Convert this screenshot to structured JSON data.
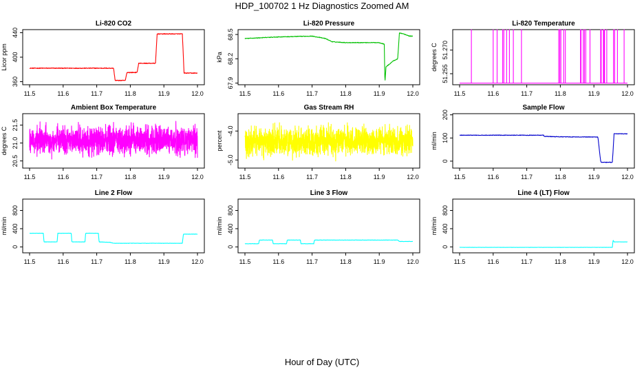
{
  "page": {
    "title": "HDP_100702  1 Hz Diagnostics Zoomed AM",
    "bottom_label": "Hour of Day (UTC)"
  },
  "chart_data": [
    {
      "type": "line",
      "title": "Li-820 CO2",
      "ylabel": "Licor ppm",
      "color": "#ff0000",
      "xlim": [
        11.5,
        12.0
      ],
      "xticks": [
        "11.5",
        "11.6",
        "11.7",
        "11.8",
        "11.9",
        "12.0"
      ],
      "ylim": [
        355,
        445
      ],
      "yticks": [
        "360",
        "400",
        "440"
      ],
      "noise": 0.6,
      "series": [
        {
          "x": [
            11.5,
            11.75,
            11.755,
            11.785,
            11.79,
            11.82,
            11.825,
            11.875,
            11.88,
            11.955,
            11.96,
            12.0
          ],
          "y": [
            382,
            382,
            362,
            362,
            375,
            375,
            390,
            390,
            438,
            438,
            374,
            374
          ]
        }
      ]
    },
    {
      "type": "line",
      "title": "Li-820 Pressure",
      "ylabel": "kPa",
      "color": "#00c000",
      "xlim": [
        11.5,
        12.0
      ],
      "xticks": [
        "11.5",
        "11.6",
        "11.7",
        "11.8",
        "11.9",
        "12.0"
      ],
      "ylim": [
        67.88,
        68.56
      ],
      "yticks": [
        "67.9",
        "68.2",
        "68.5"
      ],
      "noise": 0.004,
      "series": [
        {
          "x": [
            11.5,
            11.55,
            11.6,
            11.7,
            11.74,
            11.76,
            11.8,
            11.9,
            11.915,
            11.917,
            11.92,
            11.935,
            11.94,
            11.955,
            11.96,
            11.97,
            11.99,
            12.0
          ],
          "y": [
            68.45,
            68.46,
            68.47,
            68.48,
            68.45,
            68.41,
            68.4,
            68.4,
            68.38,
            67.9,
            68.1,
            68.15,
            68.17,
            68.2,
            68.52,
            68.51,
            68.48,
            68.48
          ]
        }
      ]
    },
    {
      "type": "line",
      "title": "Li-820 Temperature",
      "ylabel": "degrees C",
      "color": "#ff00ff",
      "xlim": [
        11.5,
        12.0
      ],
      "xticks": [
        "11.5",
        "11.6",
        "11.7",
        "11.8",
        "11.9",
        "12.0"
      ],
      "ylim": [
        51.248,
        51.283
      ],
      "yticks": [
        "51.255",
        "51.270"
      ],
      "baseline": 51.249,
      "spike_top": 51.283,
      "spikes": [
        11.535,
        11.6,
        11.612,
        11.628,
        11.632,
        11.64,
        11.648,
        11.66,
        11.684,
        11.795,
        11.798,
        11.802,
        11.81,
        11.815,
        11.86,
        11.862,
        11.868,
        11.872,
        11.876,
        11.888,
        11.92,
        11.922,
        11.928,
        11.93,
        11.932,
        11.938,
        11.958,
        11.962,
        11.97,
        11.99
      ]
    },
    {
      "type": "line",
      "title": "Ambient Box Temperature",
      "ylabel": "degrees C",
      "color": "#ff00ff",
      "xlim": [
        11.5,
        12.0
      ],
      "xticks": [
        "11.5",
        "11.6",
        "11.7",
        "11.8",
        "11.9",
        "12.0"
      ],
      "ylim": [
        20.3,
        21.82
      ],
      "yticks": [
        "20.5",
        "21.0",
        "21.5"
      ],
      "center": 21.08,
      "spread": 0.36
    },
    {
      "type": "line",
      "title": "Gas Stream RH",
      "ylabel": "percent",
      "color": "#ffff00",
      "xlim": [
        11.5,
        12.0
      ],
      "xticks": [
        "11.5",
        "11.6",
        "11.7",
        "11.8",
        "11.9",
        "12.0"
      ],
      "ylim": [
        -5.28,
        -3.4
      ],
      "yticks": [
        "-5.0",
        "-4.0"
      ],
      "center": -4.35,
      "spread": 0.45
    },
    {
      "type": "line",
      "title": "Sample Flow",
      "ylabel": "ml/min",
      "color": "#0000cc",
      "xlim": [
        11.5,
        12.0
      ],
      "xticks": [
        "11.5",
        "11.6",
        "11.7",
        "11.8",
        "11.9",
        "12.0"
      ],
      "ylim": [
        -30,
        205
      ],
      "yticks": [
        "0",
        "100",
        "200"
      ],
      "noise": 1.2,
      "series": [
        {
          "x": [
            11.5,
            11.75,
            11.752,
            11.8,
            11.91,
            11.912,
            11.92,
            11.922,
            11.955,
            11.96,
            12.0
          ],
          "y": [
            112,
            112,
            107,
            105,
            104,
            104,
            0,
            -5,
            -5,
            118,
            118
          ]
        }
      ]
    },
    {
      "type": "line",
      "title": "Line 2 Flow",
      "ylabel": "ml/min",
      "color": "#00ffff",
      "xlim": [
        11.5,
        12.0
      ],
      "xticks": [
        "11.5",
        "11.6",
        "11.7",
        "11.8",
        "11.9",
        "12.0"
      ],
      "ylim": [
        -130,
        1050
      ],
      "yticks": [
        "0",
        "400",
        "800"
      ],
      "noise": 3,
      "series": [
        {
          "x": [
            11.5,
            11.541,
            11.543,
            11.582,
            11.584,
            11.624,
            11.626,
            11.665,
            11.667,
            11.705,
            11.707,
            11.74,
            11.75,
            11.955,
            11.958,
            12.0
          ],
          "y": [
            300,
            300,
            110,
            110,
            300,
            300,
            110,
            110,
            300,
            300,
            110,
            100,
            80,
            80,
            280,
            280
          ]
        }
      ]
    },
    {
      "type": "line",
      "title": "Line 3 Flow",
      "ylabel": "ml/min",
      "color": "#00ffff",
      "xlim": [
        11.5,
        12.0
      ],
      "xticks": [
        "11.5",
        "11.6",
        "11.7",
        "11.8",
        "11.9",
        "12.0"
      ],
      "ylim": [
        -130,
        1050
      ],
      "yticks": [
        "0",
        "400",
        "800"
      ],
      "noise": 3,
      "series": [
        {
          "x": [
            11.5,
            11.541,
            11.543,
            11.582,
            11.584,
            11.624,
            11.626,
            11.665,
            11.667,
            11.705,
            11.707,
            11.955,
            11.96,
            12.0
          ],
          "y": [
            70,
            70,
            150,
            150,
            70,
            70,
            150,
            150,
            70,
            70,
            150,
            150,
            120,
            120
          ]
        }
      ]
    },
    {
      "type": "line",
      "title": "Line 4 (LT) Flow",
      "ylabel": "ml/min",
      "color": "#00ffff",
      "xlim": [
        11.5,
        12.0
      ],
      "xticks": [
        "11.5",
        "11.6",
        "11.7",
        "11.8",
        "11.9",
        "12.0"
      ],
      "ylim": [
        -130,
        1050
      ],
      "yticks": [
        "0",
        "400",
        "800"
      ],
      "noise": 2,
      "series": [
        {
          "x": [
            11.5,
            11.955,
            11.957,
            11.96,
            12.0
          ],
          "y": [
            -10,
            -10,
            150,
            110,
            110
          ]
        }
      ]
    }
  ]
}
